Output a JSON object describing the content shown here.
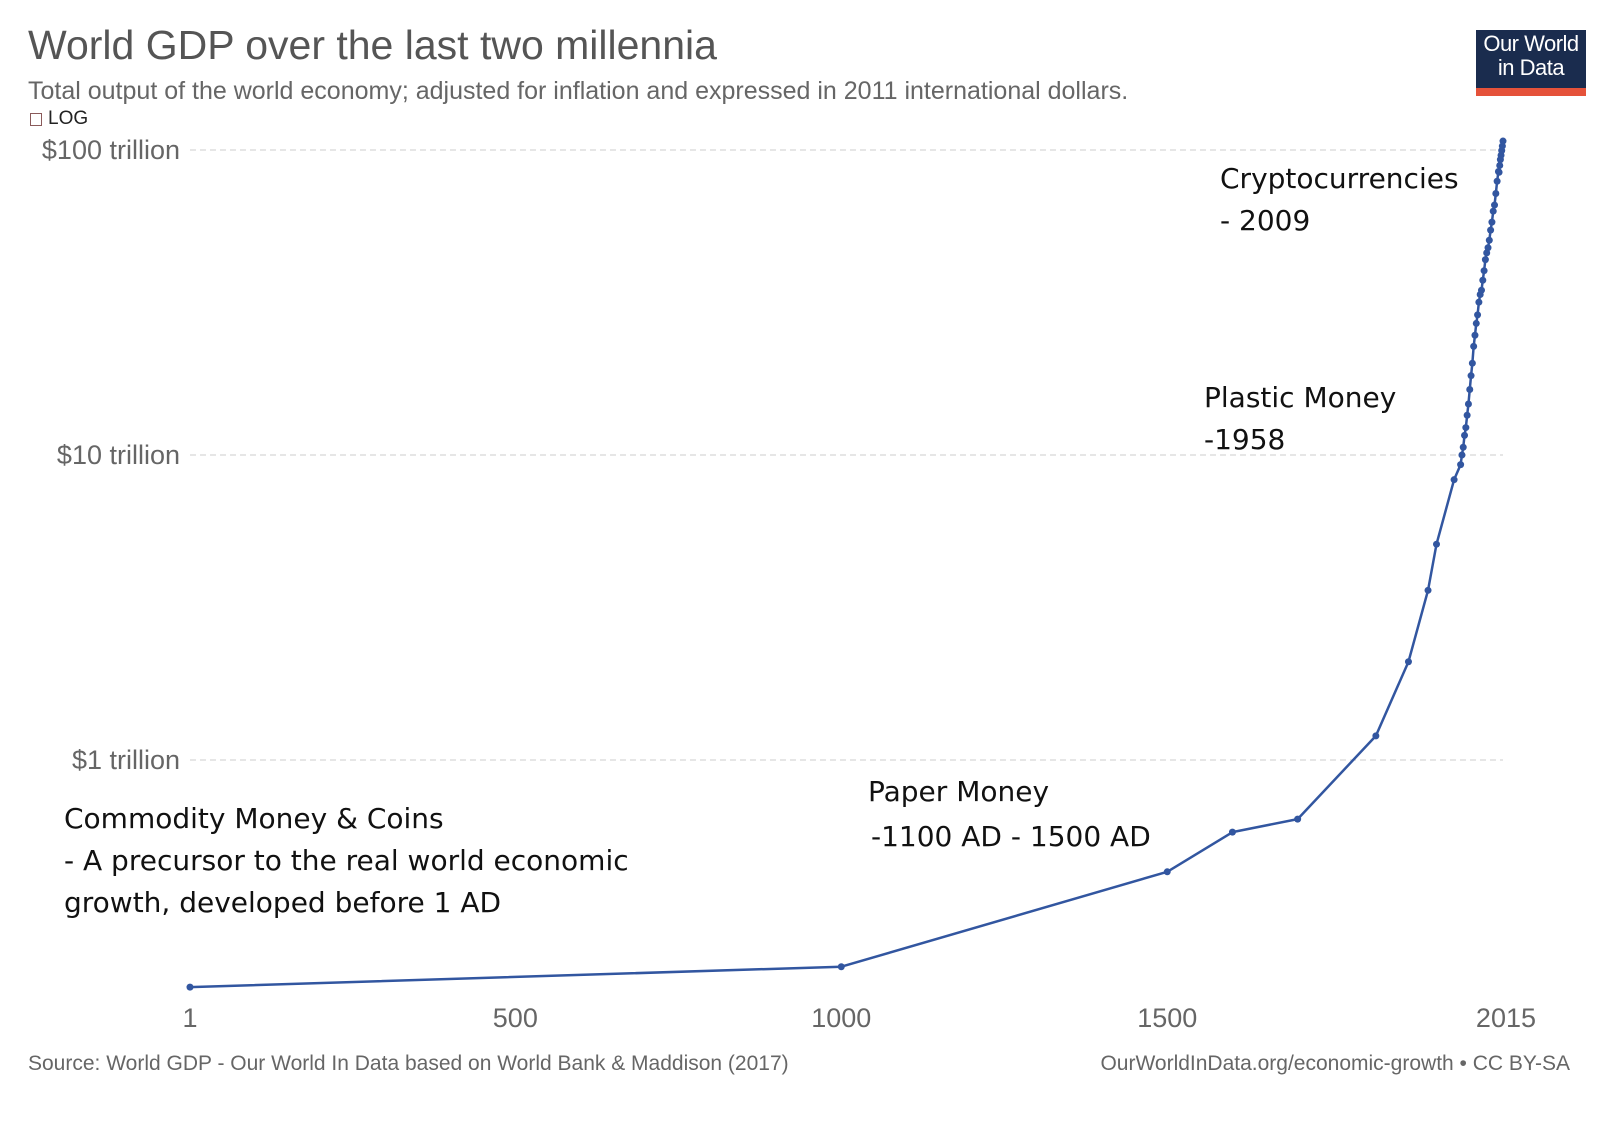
{
  "header": {
    "title": "World GDP over the last two millennia",
    "subtitle": "Total output of the world economy; adjusted for inflation and expressed in 2011 international dollars.",
    "log_label": "LOG"
  },
  "logo": {
    "line1": "Our World",
    "line2": "in Data",
    "bg_color": "#1a2c4e",
    "bar_color": "#e5523a"
  },
  "footer": {
    "source": "Source: World GDP - Our World In Data based on World Bank & Maddison (2017)",
    "license": "OurWorldInData.org/economic-growth • CC BY-SA"
  },
  "annotations": {
    "commodity": {
      "line1": "Commodity Money & Coins",
      "line2": "- A precursor to the real world economic",
      "line3": "growth, developed before 1 AD"
    },
    "paper": {
      "line1": "Paper Money",
      "line2": "-1100 AD - 1500 AD"
    },
    "plastic": {
      "line1": "Plastic Money",
      "line2": "-1958"
    },
    "crypto": {
      "line1": "Cryptocurrencies",
      "line2": "- 2009"
    }
  },
  "chart_data": {
    "type": "line",
    "y_scale": "log",
    "grid": true,
    "line_color": "#3256a0",
    "x_ticks": [
      1,
      500,
      1000,
      1500,
      2015
    ],
    "y_ticks": [
      {
        "value": 1,
        "label": "$1 trillion"
      },
      {
        "value": 10,
        "label": "$10 trillion"
      },
      {
        "value": 100,
        "label": "$100 trillion"
      }
    ],
    "xlim": [
      1,
      2015
    ],
    "ylabel_unit": "trillion 2011 int-$",
    "series": [
      {
        "values": [
          [
            1,
            0.18
          ],
          [
            1000,
            0.21
          ],
          [
            1500,
            0.43
          ],
          [
            1600,
            0.58
          ],
          [
            1700,
            0.64
          ],
          [
            1820,
            1.2
          ],
          [
            1870,
            2.1
          ],
          [
            1900,
            3.6
          ],
          [
            1913,
            5.1
          ],
          [
            1940,
            8.3
          ],
          [
            1950,
            9.3
          ],
          [
            1952,
            10.0
          ],
          [
            1954,
            10.6
          ],
          [
            1956,
            11.6
          ],
          [
            1958,
            12.3
          ],
          [
            1960,
            13.5
          ],
          [
            1962,
            14.7
          ],
          [
            1964,
            16.4
          ],
          [
            1966,
            18.2
          ],
          [
            1968,
            20.0
          ],
          [
            1970,
            22.7
          ],
          [
            1972,
            24.7
          ],
          [
            1974,
            27.0
          ],
          [
            1976,
            28.8
          ],
          [
            1978,
            31.7
          ],
          [
            1980,
            33.6
          ],
          [
            1982,
            34.7
          ],
          [
            1984,
            37.4
          ],
          [
            1986,
            40.2
          ],
          [
            1988,
            43.7
          ],
          [
            1990,
            46.0
          ],
          [
            1992,
            47.8
          ],
          [
            1994,
            50.6
          ],
          [
            1996,
            54.6
          ],
          [
            1998,
            58.0
          ],
          [
            2000,
            63.0
          ],
          [
            2002,
            66.0
          ],
          [
            2004,
            72.0
          ],
          [
            2006,
            79.0
          ],
          [
            2008,
            85.0
          ],
          [
            2009,
            84.5
          ],
          [
            2010,
            89.0
          ],
          [
            2011,
            93.0
          ],
          [
            2012,
            96.0
          ],
          [
            2013,
            99.5
          ],
          [
            2014,
            103.0
          ],
          [
            2015,
            107.0
          ]
        ]
      }
    ]
  }
}
